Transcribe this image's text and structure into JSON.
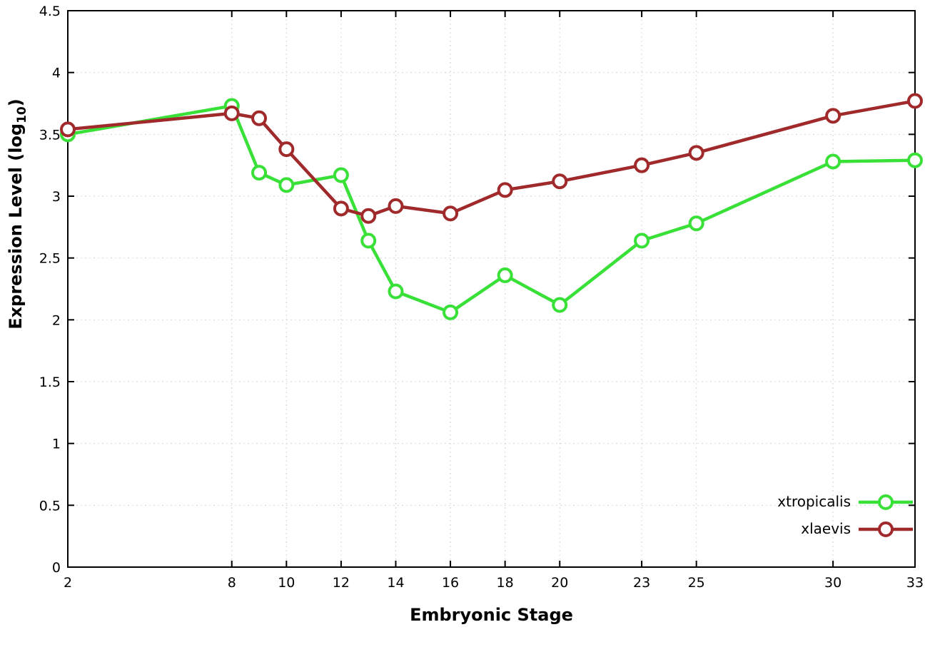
{
  "chart_data": {
    "type": "line",
    "title": "",
    "xlabel": "Embryonic Stage",
    "ylabel": {
      "prefix": "Expression Level (log",
      "sub": "10",
      "suffix": ")"
    },
    "x": [
      2,
      8,
      9,
      10,
      12,
      13,
      14,
      16,
      18,
      20,
      23,
      25,
      30,
      33
    ],
    "series": [
      {
        "name": "xtropicalis",
        "color": "#38e038",
        "values": [
          3.5,
          3.73,
          3.19,
          3.09,
          3.17,
          2.64,
          2.23,
          2.06,
          2.36,
          2.12,
          2.64,
          2.78,
          3.28,
          3.29
        ]
      },
      {
        "name": "xlaevis",
        "color": "#a02a2b",
        "values": [
          3.54,
          3.67,
          3.63,
          3.38,
          2.9,
          2.84,
          2.92,
          2.86,
          3.05,
          3.12,
          3.25,
          3.35,
          3.65,
          3.77
        ]
      }
    ],
    "xticks": [
      2,
      8,
      10,
      12,
      14,
      16,
      18,
      20,
      23,
      25,
      30,
      33
    ],
    "yticks": [
      0,
      0.5,
      1,
      1.5,
      2,
      2.5,
      3,
      3.5,
      4,
      4.5
    ],
    "xlim": [
      2,
      33
    ],
    "ylim": [
      0,
      4.5
    ],
    "grid": true,
    "grid_color": "#d4d4d4",
    "border_color": "#000000",
    "marker": "open-circle",
    "legend_position": "bottom-right",
    "legend_entries": [
      "xtropicalis",
      "xlaevis"
    ]
  }
}
